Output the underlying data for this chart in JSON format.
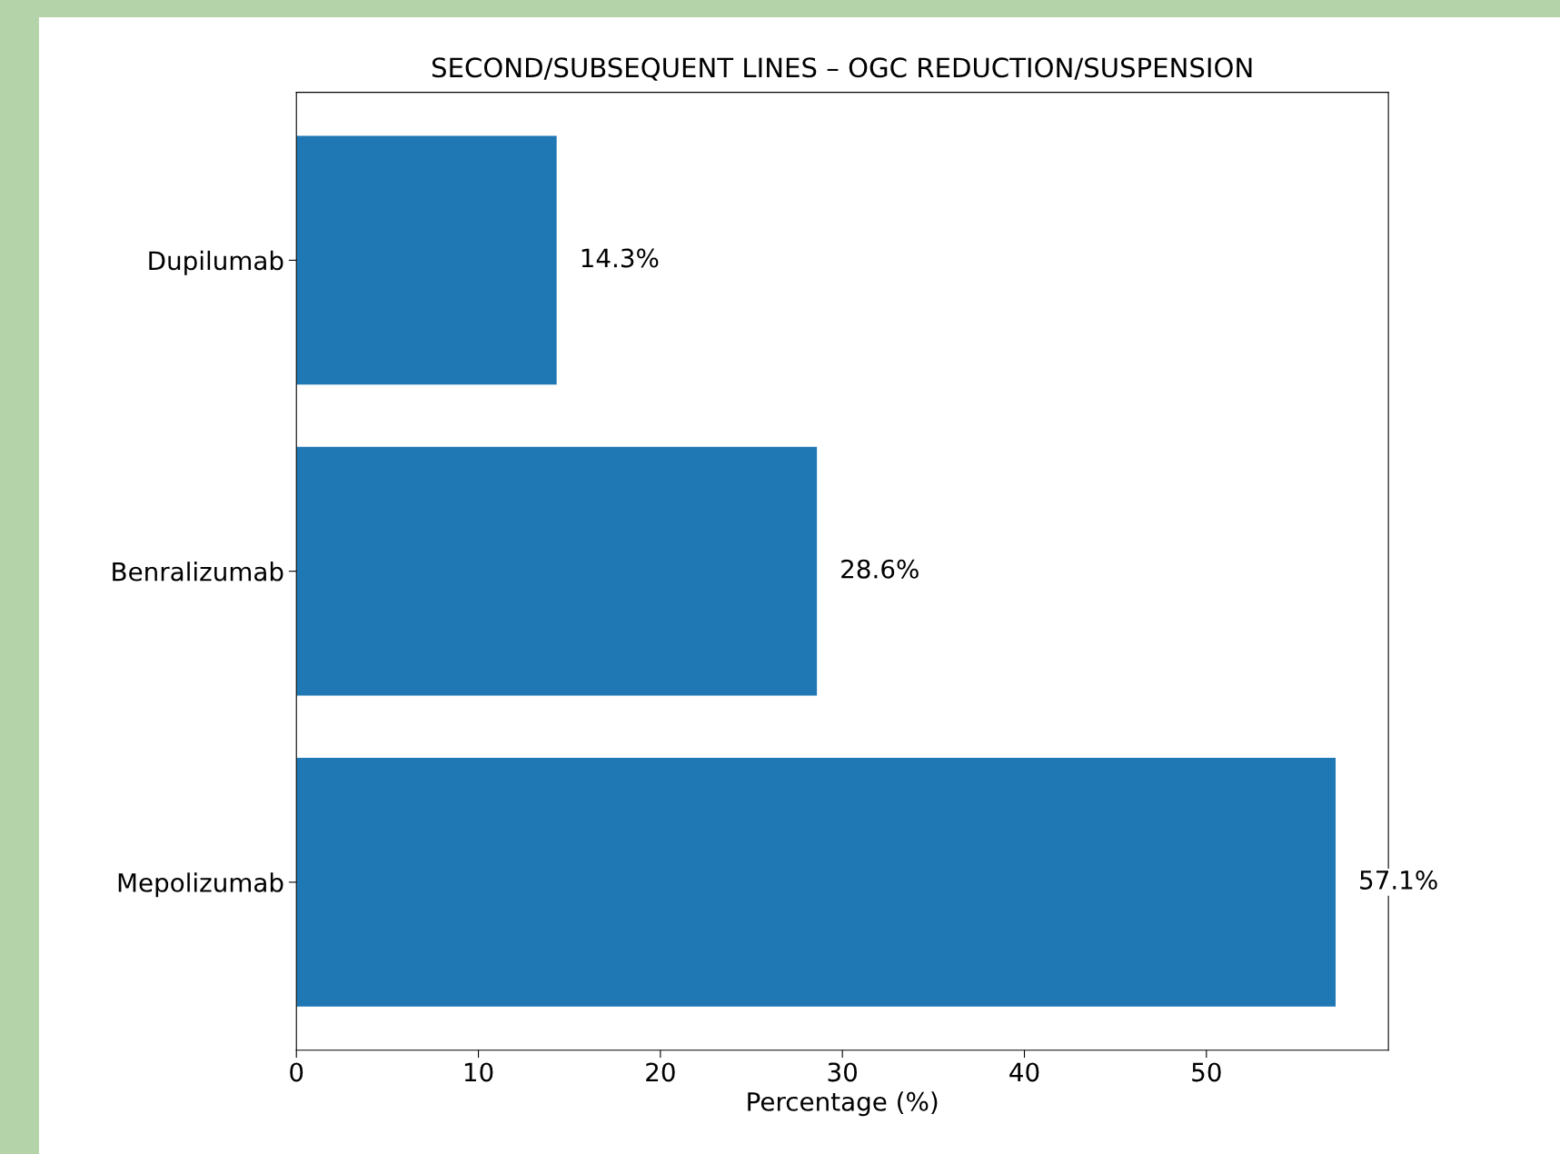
{
  "chart_data": {
    "type": "bar",
    "orientation": "horizontal",
    "title": "SECOND/SUBSEQUENT LINES – OGC REDUCTION/SUSPENSION",
    "xlabel": "Percentage (%)",
    "categories": [
      "Dupilumab",
      "Benralizumab",
      "Mepolizumab"
    ],
    "values": [
      14.3,
      28.6,
      57.1
    ],
    "value_labels": [
      "14.3%",
      "28.6%",
      "57.1%"
    ],
    "color": "#1f77b4",
    "xlim": [
      0,
      60
    ],
    "xticks": [
      0,
      10,
      20,
      30,
      40,
      50
    ],
    "grid": false
  }
}
